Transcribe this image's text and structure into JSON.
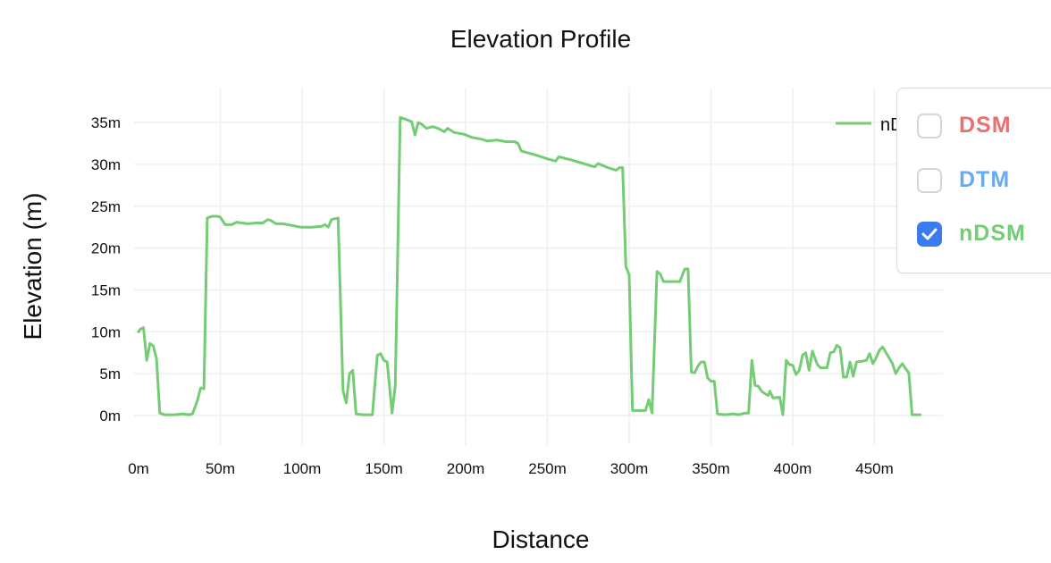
{
  "chart_data": {
    "type": "line",
    "title": "Elevation Profile",
    "xlabel": "Distance",
    "ylabel": "Elevation (m)",
    "xlim": [
      0,
      492
    ],
    "ylim": [
      -3.5,
      38
    ],
    "grid": true,
    "legend_position": "top-right",
    "x_ticks": [
      "0m",
      "50m",
      "100m",
      "150m",
      "200m",
      "250m",
      "300m",
      "350m",
      "400m",
      "450m"
    ],
    "y_ticks": [
      "0m",
      "5m",
      "10m",
      "15m",
      "20m",
      "25m",
      "30m",
      "35m"
    ],
    "series": [
      {
        "name": "nDSM",
        "color": "#74cc74",
        "points": [
          [
            0,
            10
          ],
          [
            1,
            10.3
          ],
          [
            3,
            10.5
          ],
          [
            5,
            6.6
          ],
          [
            7,
            8.6
          ],
          [
            9,
            8.3
          ],
          [
            11,
            6.8
          ],
          [
            13,
            0.3
          ],
          [
            16,
            0.1
          ],
          [
            22,
            0.1
          ],
          [
            27,
            0.2
          ],
          [
            31,
            0.1
          ],
          [
            33,
            0.2
          ],
          [
            36,
            1.8
          ],
          [
            38,
            3.3
          ],
          [
            40,
            3.2
          ],
          [
            42,
            23.6
          ],
          [
            45,
            23.8
          ],
          [
            48,
            23.8
          ],
          [
            50,
            23.7
          ],
          [
            53,
            22.8
          ],
          [
            57,
            22.8
          ],
          [
            60,
            23.1
          ],
          [
            63,
            23.0
          ],
          [
            67,
            22.9
          ],
          [
            72,
            23.0
          ],
          [
            76,
            23.0
          ],
          [
            79,
            23.4
          ],
          [
            81,
            23.3
          ],
          [
            84,
            22.9
          ],
          [
            88,
            22.9
          ],
          [
            94,
            22.7
          ],
          [
            99,
            22.5
          ],
          [
            106,
            22.5
          ],
          [
            112,
            22.6
          ],
          [
            114,
            22.8
          ],
          [
            116,
            22.5
          ],
          [
            118,
            23.4
          ],
          [
            122,
            23.6
          ],
          [
            125,
            3.0
          ],
          [
            127,
            1.5
          ],
          [
            129,
            5.0
          ],
          [
            131,
            5.4
          ],
          [
            133,
            0.2
          ],
          [
            137,
            0.1
          ],
          [
            141,
            0.1
          ],
          [
            143,
            0.1
          ],
          [
            146,
            7.2
          ],
          [
            148,
            7.4
          ],
          [
            150,
            6.6
          ],
          [
            152,
            6.4
          ],
          [
            155,
            0.3
          ],
          [
            157,
            3.6
          ],
          [
            160,
            35.6
          ],
          [
            163,
            35.4
          ],
          [
            167,
            35.1
          ],
          [
            169,
            33.5
          ],
          [
            171,
            35.0
          ],
          [
            173,
            34.8
          ],
          [
            176,
            34.3
          ],
          [
            180,
            34.5
          ],
          [
            183,
            34.3
          ],
          [
            187,
            33.9
          ],
          [
            189,
            34.3
          ],
          [
            193,
            33.8
          ],
          [
            199,
            33.6
          ],
          [
            204,
            33.2
          ],
          [
            210,
            33.0
          ],
          [
            213,
            32.8
          ],
          [
            219,
            32.9
          ],
          [
            225,
            32.7
          ],
          [
            230,
            32.7
          ],
          [
            232,
            32.5
          ],
          [
            234,
            31.6
          ],
          [
            243,
            31.1
          ],
          [
            251,
            30.6
          ],
          [
            255,
            30.4
          ],
          [
            257,
            30.9
          ],
          [
            265,
            30.5
          ],
          [
            272,
            30.1
          ],
          [
            277,
            29.8
          ],
          [
            279,
            29.7
          ],
          [
            281,
            30.1
          ],
          [
            287,
            29.6
          ],
          [
            292,
            29.3
          ],
          [
            294,
            29.6
          ],
          [
            296,
            29.6
          ],
          [
            298,
            17.8
          ],
          [
            300,
            16.8
          ],
          [
            302,
            0.6
          ],
          [
            306,
            0.6
          ],
          [
            310,
            0.6
          ],
          [
            312,
            1.9
          ],
          [
            314,
            0.3
          ],
          [
            317,
            17.2
          ],
          [
            319,
            16.9
          ],
          [
            321,
            16.0
          ],
          [
            327,
            16.0
          ],
          [
            331,
            16.0
          ],
          [
            334,
            17.5
          ],
          [
            336,
            17.5
          ],
          [
            338,
            5.2
          ],
          [
            340,
            5.1
          ],
          [
            342,
            5.9
          ],
          [
            344,
            6.4
          ],
          [
            346,
            6.4
          ],
          [
            348,
            4.5
          ],
          [
            350,
            4.1
          ],
          [
            352,
            4.1
          ],
          [
            354,
            0.2
          ],
          [
            358,
            0.1
          ],
          [
            364,
            0.2
          ],
          [
            367,
            0.1
          ],
          [
            371,
            0.3
          ],
          [
            373,
            0.3
          ],
          [
            375,
            6.6
          ],
          [
            377,
            3.6
          ],
          [
            379,
            3.5
          ],
          [
            381,
            2.9
          ],
          [
            383,
            2.6
          ],
          [
            385,
            2.4
          ],
          [
            386,
            2.9
          ],
          [
            388,
            2.1
          ],
          [
            392,
            2.2
          ],
          [
            394,
            0.1
          ],
          [
            396,
            6.6
          ],
          [
            398,
            6.1
          ],
          [
            400,
            6.0
          ],
          [
            402,
            4.9
          ],
          [
            404,
            5.4
          ],
          [
            406,
            7.2
          ],
          [
            408,
            7.5
          ],
          [
            410,
            5.4
          ],
          [
            412,
            7.7
          ],
          [
            415,
            6.1
          ],
          [
            417,
            5.7
          ],
          [
            421,
            5.7
          ],
          [
            423,
            7.5
          ],
          [
            425,
            7.6
          ],
          [
            427,
            8.4
          ],
          [
            429,
            8.1
          ],
          [
            431,
            4.6
          ],
          [
            433,
            4.6
          ],
          [
            435,
            6.4
          ],
          [
            437,
            4.7
          ],
          [
            439,
            6.4
          ],
          [
            443,
            6.5
          ],
          [
            445,
            6.6
          ],
          [
            447,
            7.4
          ],
          [
            449,
            6.2
          ],
          [
            451,
            6.9
          ],
          [
            453,
            7.8
          ],
          [
            455,
            8.2
          ],
          [
            458,
            7.2
          ],
          [
            461,
            6.2
          ],
          [
            463,
            5.0
          ],
          [
            465,
            5.7
          ],
          [
            467,
            6.2
          ],
          [
            469,
            5.6
          ],
          [
            471,
            5.1
          ],
          [
            473,
            0.1
          ],
          [
            478,
            0.1
          ]
        ]
      }
    ]
  },
  "chart": {
    "title": "Elevation Profile",
    "xlabel": "Distance",
    "ylabel": "Elevation (m)",
    "legend_label": "nDSM"
  },
  "layer_panel": {
    "options": [
      {
        "label": "DSM",
        "color": "#ea7070",
        "checked": false
      },
      {
        "label": "DTM",
        "color": "#6aaaf0",
        "checked": false
      },
      {
        "label": "nDSM",
        "color": "#74cc74",
        "checked": true
      }
    ],
    "checkbox_checked_color": "#3b7bf0"
  }
}
